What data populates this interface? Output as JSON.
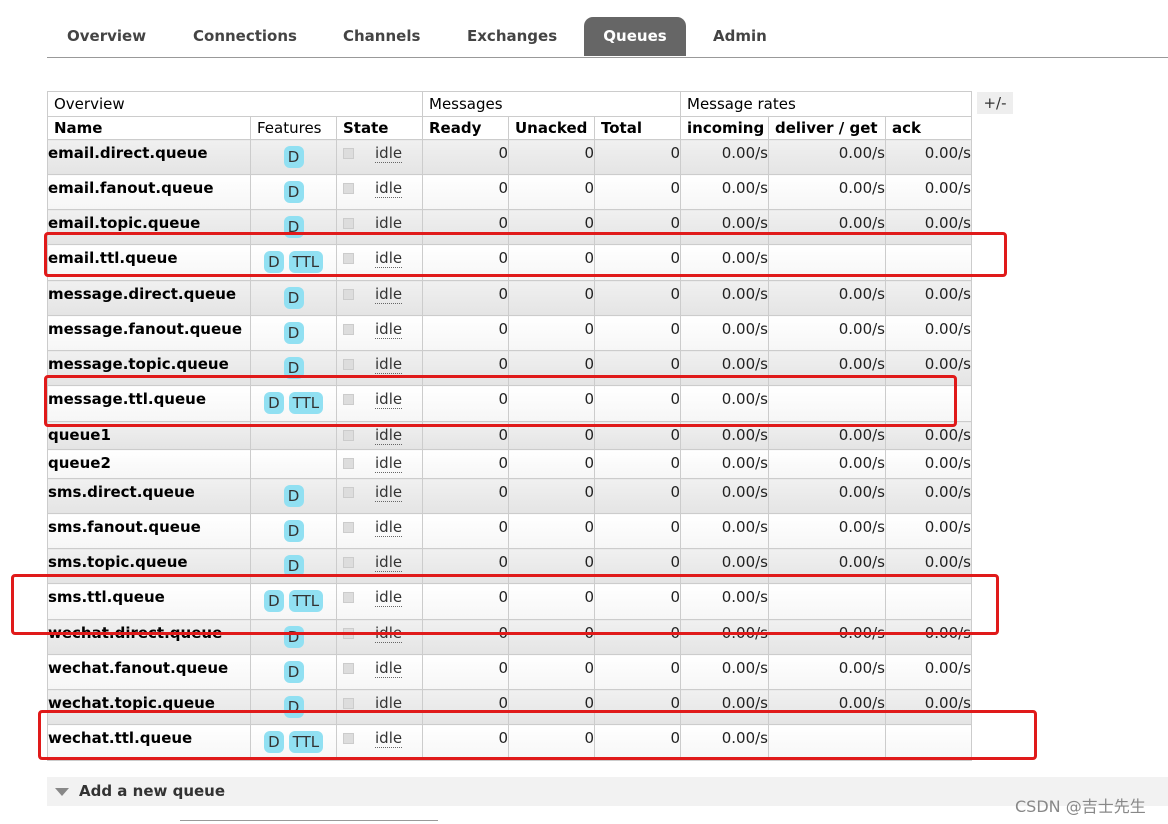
{
  "tabs": [
    {
      "label": "Overview"
    },
    {
      "label": "Connections"
    },
    {
      "label": "Channels"
    },
    {
      "label": "Exchanges"
    },
    {
      "label": "Queues",
      "active": true
    },
    {
      "label": "Admin"
    }
  ],
  "table": {
    "groups": {
      "overview": "Overview",
      "messages": "Messages",
      "rates": "Message rates"
    },
    "toggle_columns": "+/-",
    "columns": {
      "name": "Name",
      "features": "Features",
      "state": "State",
      "ready": "Ready",
      "unacked": "Unacked",
      "total": "Total",
      "incoming": "incoming",
      "deliver_get": "deliver / get",
      "ack": "ack"
    },
    "rows": [
      {
        "name": "email.direct.queue",
        "features": [
          "D"
        ],
        "state": "idle",
        "ready": "0",
        "unacked": "0",
        "total": "0",
        "incoming": "0.00/s",
        "deliver_get": "0.00/s",
        "ack": "0.00/s",
        "h": 35
      },
      {
        "name": "email.fanout.queue",
        "features": [
          "D"
        ],
        "state": "idle",
        "ready": "0",
        "unacked": "0",
        "total": "0",
        "incoming": "0.00/s",
        "deliver_get": "0.00/s",
        "ack": "0.00/s",
        "h": 35
      },
      {
        "name": "email.topic.queue",
        "features": [
          "D"
        ],
        "state": "idle",
        "ready": "0",
        "unacked": "0",
        "total": "0",
        "incoming": "0.00/s",
        "deliver_get": "0.00/s",
        "ack": "0.00/s",
        "h": 35
      },
      {
        "name": "email.ttl.queue",
        "features": [
          "D",
          "TTL"
        ],
        "state": "idle",
        "ready": "0",
        "unacked": "0",
        "total": "0",
        "incoming": "0.00/s",
        "deliver_get": "",
        "ack": "",
        "h": 36
      },
      {
        "name": "message.direct.queue",
        "features": [
          "D"
        ],
        "state": "idle",
        "ready": "0",
        "unacked": "0",
        "total": "0",
        "incoming": "0.00/s",
        "deliver_get": "0.00/s",
        "ack": "0.00/s",
        "h": 35
      },
      {
        "name": "message.fanout.queue",
        "features": [
          "D"
        ],
        "state": "idle",
        "ready": "0",
        "unacked": "0",
        "total": "0",
        "incoming": "0.00/s",
        "deliver_get": "0.00/s",
        "ack": "0.00/s",
        "h": 35
      },
      {
        "name": "message.topic.queue",
        "features": [
          "D"
        ],
        "state": "idle",
        "ready": "0",
        "unacked": "0",
        "total": "0",
        "incoming": "0.00/s",
        "deliver_get": "0.00/s",
        "ack": "0.00/s",
        "h": 35
      },
      {
        "name": "message.ttl.queue",
        "features": [
          "D",
          "TTL"
        ],
        "state": "idle",
        "ready": "0",
        "unacked": "0",
        "total": "0",
        "incoming": "0.00/s",
        "deliver_get": "",
        "ack": "",
        "h": 36
      },
      {
        "name": "queue1",
        "features": [],
        "state": "idle",
        "ready": "0",
        "unacked": "0",
        "total": "0",
        "incoming": "0.00/s",
        "deliver_get": "0.00/s",
        "ack": "0.00/s",
        "h": 28
      },
      {
        "name": "queue2",
        "features": [],
        "state": "idle",
        "ready": "0",
        "unacked": "0",
        "total": "0",
        "incoming": "0.00/s",
        "deliver_get": "0.00/s",
        "ack": "0.00/s",
        "h": 29
      },
      {
        "name": "sms.direct.queue",
        "features": [
          "D"
        ],
        "state": "idle",
        "ready": "0",
        "unacked": "0",
        "total": "0",
        "incoming": "0.00/s",
        "deliver_get": "0.00/s",
        "ack": "0.00/s",
        "h": 35
      },
      {
        "name": "sms.fanout.queue",
        "features": [
          "D"
        ],
        "state": "idle",
        "ready": "0",
        "unacked": "0",
        "total": "0",
        "incoming": "0.00/s",
        "deliver_get": "0.00/s",
        "ack": "0.00/s",
        "h": 35
      },
      {
        "name": "sms.topic.queue",
        "features": [
          "D"
        ],
        "state": "idle",
        "ready": "0",
        "unacked": "0",
        "total": "0",
        "incoming": "0.00/s",
        "deliver_get": "0.00/s",
        "ack": "0.00/s",
        "h": 35
      },
      {
        "name": "sms.ttl.queue",
        "features": [
          "D",
          "TTL"
        ],
        "state": "idle",
        "ready": "0",
        "unacked": "0",
        "total": "0",
        "incoming": "0.00/s",
        "deliver_get": "",
        "ack": "",
        "h": 36
      },
      {
        "name": "wechat.direct.queue",
        "features": [
          "D"
        ],
        "state": "idle",
        "ready": "0",
        "unacked": "0",
        "total": "0",
        "incoming": "0.00/s",
        "deliver_get": "0.00/s",
        "ack": "0.00/s",
        "h": 35
      },
      {
        "name": "wechat.fanout.queue",
        "features": [
          "D"
        ],
        "state": "idle",
        "ready": "0",
        "unacked": "0",
        "total": "0",
        "incoming": "0.00/s",
        "deliver_get": "0.00/s",
        "ack": "0.00/s",
        "h": 35
      },
      {
        "name": "wechat.topic.queue",
        "features": [
          "D"
        ],
        "state": "idle",
        "ready": "0",
        "unacked": "0",
        "total": "0",
        "incoming": "0.00/s",
        "deliver_get": "0.00/s",
        "ack": "0.00/s",
        "h": 35
      },
      {
        "name": "wechat.ttl.queue",
        "features": [
          "D",
          "TTL"
        ],
        "state": "idle",
        "ready": "0",
        "unacked": "0",
        "total": "0",
        "incoming": "0.00/s",
        "deliver_get": "",
        "ack": "",
        "h": 36
      }
    ]
  },
  "add_queue": {
    "label": "Add a new queue"
  },
  "watermark": "CSDN @吉士先生",
  "colors": {
    "highlight": "#e01a1a",
    "badge": "#91e0f2",
    "active_tab": "#666666"
  }
}
